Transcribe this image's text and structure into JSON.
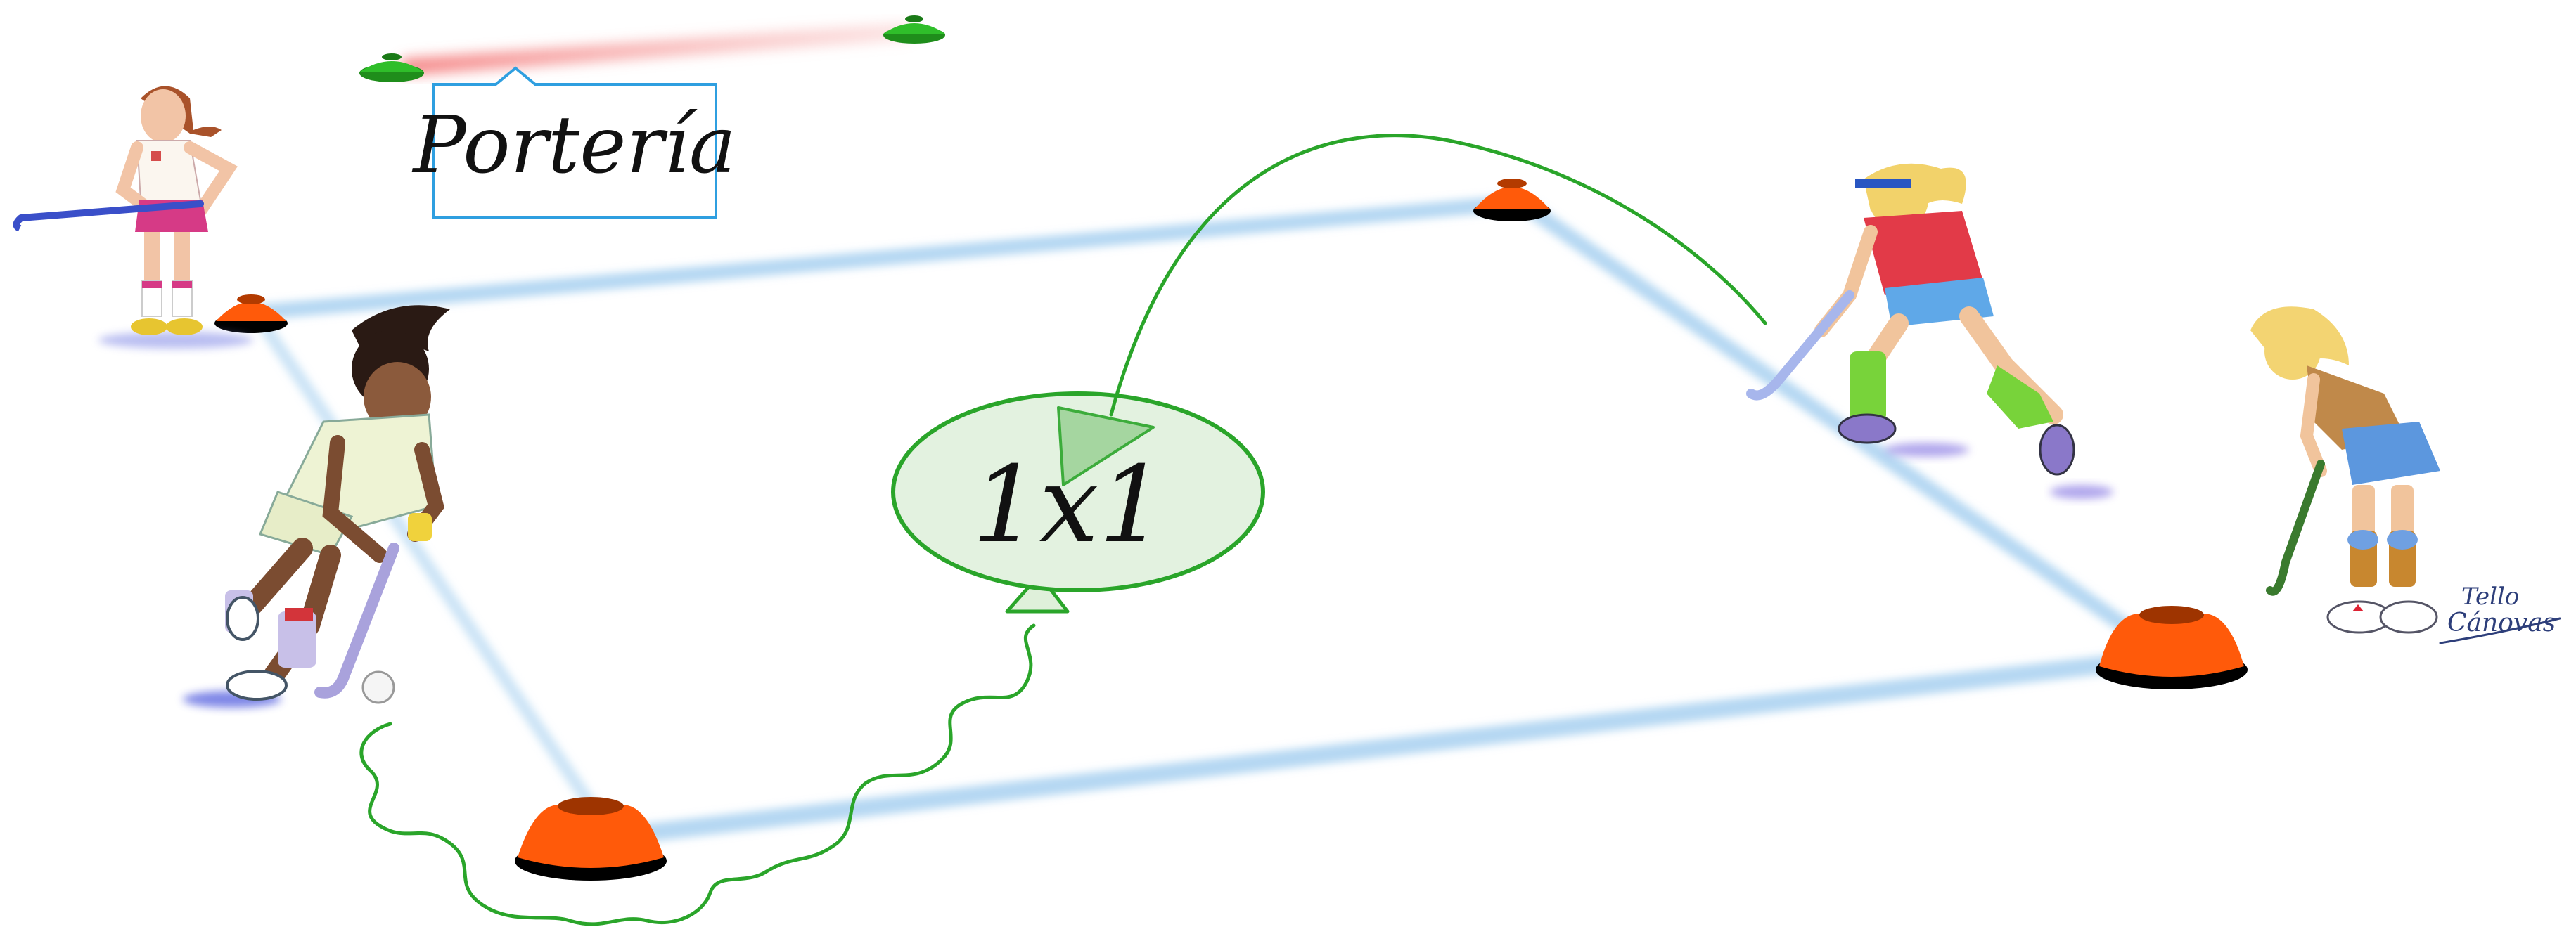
{
  "goal_label": "Portería",
  "drill_label": "1x1",
  "signature": {
    "first": "Tello",
    "last": "Cánovas"
  },
  "colors": {
    "field_line": "#9cc8ec",
    "cone_orange": "#ff5a0a",
    "cone_green": "#2fbe2a",
    "goal_line": "#f6a3a3",
    "run_path": "#2aa52a",
    "bubble_fill": "#e3f2e0",
    "label_border": "#2f9fe0"
  }
}
